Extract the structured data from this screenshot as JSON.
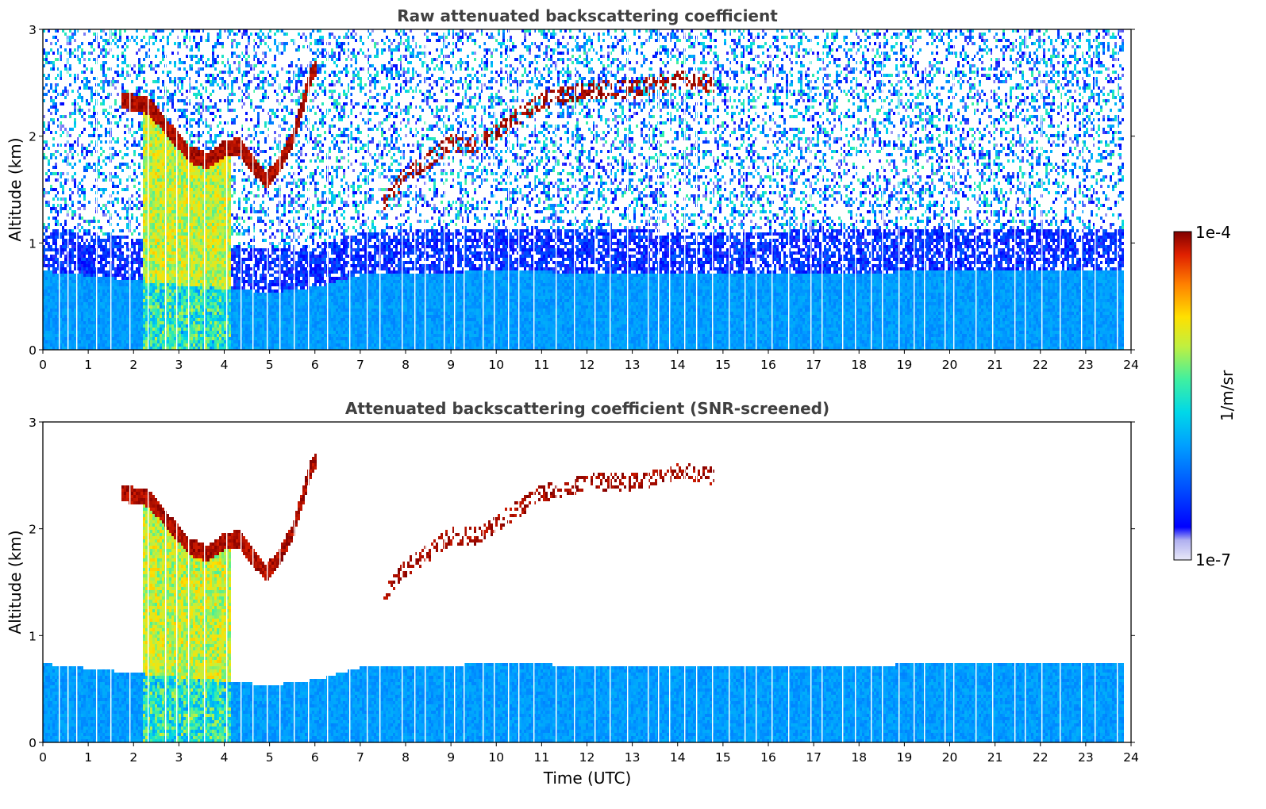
{
  "chart_data": [
    {
      "type": "heatmap",
      "title": "Raw attenuated backscattering coefficient",
      "xlabel": "",
      "ylabel": "Altitude (km)",
      "xlim": [
        0,
        24
      ],
      "ylim": [
        0,
        3
      ],
      "xticks": [
        "0",
        "1",
        "2",
        "3",
        "4",
        "5",
        "6",
        "7",
        "8",
        "9",
        "10",
        "11",
        "12",
        "13",
        "14",
        "15",
        "16",
        "17",
        "18",
        "19",
        "20",
        "21",
        "22",
        "23",
        "24"
      ],
      "yticks": [
        "0",
        "1",
        "2",
        "3"
      ],
      "screened": false,
      "data_end_hour": 23.8,
      "boundary_layer_top_km": [
        [
          0,
          0.75
        ],
        [
          3,
          0.62
        ],
        [
          5,
          0.55
        ],
        [
          6,
          0.6
        ],
        [
          7,
          0.72
        ],
        [
          10,
          0.75
        ],
        [
          15,
          0.72
        ],
        [
          20,
          0.75
        ],
        [
          23.8,
          0.75
        ]
      ],
      "cloud_layer_km": [
        [
          1.7,
          2.35
        ],
        [
          2.3,
          2.3
        ],
        [
          2.8,
          2.05
        ],
        [
          3.2,
          1.85
        ],
        [
          3.6,
          1.78
        ],
        [
          4.0,
          1.9
        ],
        [
          4.3,
          1.92
        ],
        [
          4.6,
          1.75
        ],
        [
          4.9,
          1.6
        ],
        [
          5.2,
          1.75
        ],
        [
          5.5,
          2.0
        ],
        [
          5.7,
          2.3
        ],
        [
          5.9,
          2.6
        ],
        [
          6.0,
          2.65
        ]
      ],
      "elevated_cloud_km": [
        [
          7.5,
          1.4
        ],
        [
          8.0,
          1.65
        ],
        [
          8.5,
          1.8
        ],
        [
          9.0,
          1.95
        ],
        [
          9.6,
          1.95
        ],
        [
          11.0,
          2.35
        ],
        [
          12.0,
          2.45
        ],
        [
          13.0,
          2.45
        ],
        [
          14.0,
          2.55
        ],
        [
          14.8,
          2.5
        ]
      ]
    },
    {
      "type": "heatmap",
      "title": "Attenuated backscattering coefficient (SNR-screened)",
      "xlabel": "Time (UTC)",
      "ylabel": "Altitude (km)",
      "xlim": [
        0,
        24
      ],
      "ylim": [
        0,
        3
      ],
      "xticks": [
        "0",
        "1",
        "2",
        "3",
        "4",
        "5",
        "6",
        "7",
        "8",
        "9",
        "10",
        "11",
        "12",
        "13",
        "14",
        "15",
        "16",
        "17",
        "18",
        "19",
        "20",
        "21",
        "22",
        "23",
        "24"
      ],
      "yticks": [
        "0",
        "1",
        "2",
        "3"
      ],
      "screened": true,
      "data_end_hour": 23.8
    }
  ],
  "colorbar": {
    "label": "1/m/sr",
    "max_label": "1e-4",
    "min_label": "1e-7",
    "scale": "log",
    "colormap": [
      "#e8e8f8",
      "#b0b0f0",
      "#0000ff",
      "#0050ff",
      "#00a0ff",
      "#00d8e8",
      "#40f0a0",
      "#c0f040",
      "#ffe000",
      "#ff8000",
      "#e02000",
      "#800000"
    ]
  }
}
